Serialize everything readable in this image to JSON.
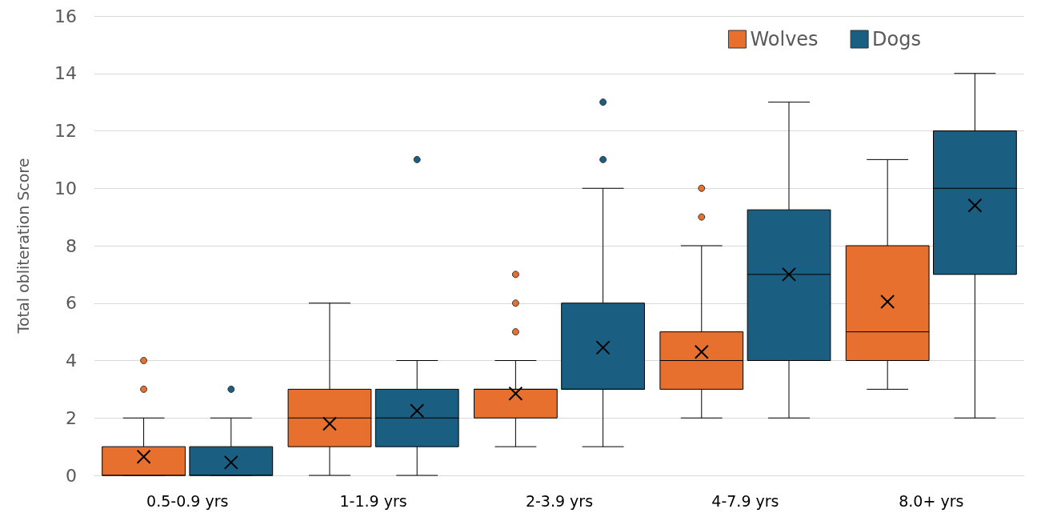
{
  "chart_data": {
    "type": "box",
    "ylabel": "Total obliteration Score",
    "categories": [
      "0.5-0.9 yrs",
      "1-1.9 yrs",
      "2-3.9 yrs",
      "4-7.9 yrs",
      "8.0+ yrs"
    ],
    "ylim": [
      0,
      16
    ],
    "yticks": [
      0,
      2,
      4,
      6,
      8,
      10,
      12,
      14,
      16
    ],
    "grid": "y",
    "legend": "top right",
    "series": [
      {
        "name": "Wolves",
        "color": "#e8702f",
        "boxes": [
          {
            "low": 0,
            "q1": 0,
            "median": 0,
            "q3": 1,
            "high": 2,
            "mean": 0.65,
            "outliers": [
              3,
              4
            ]
          },
          {
            "low": 0,
            "q1": 1,
            "median": 2,
            "q3": 3,
            "high": 6,
            "mean": 1.8
          },
          {
            "low": 1,
            "q1": 2,
            "median": 3,
            "q3": 3,
            "high": 4,
            "mean": 2.85,
            "outliers": [
              5,
              6,
              7
            ]
          },
          {
            "low": 2,
            "q1": 3,
            "median": 4,
            "q3": 5,
            "high": 8,
            "mean": 4.3,
            "outliers": [
              9,
              10
            ]
          },
          {
            "low": 3,
            "q1": 4,
            "median": 5,
            "q3": 8,
            "high": 11,
            "mean": 6.05
          }
        ]
      },
      {
        "name": "Dogs",
        "color": "#1a5e82",
        "boxes": [
          {
            "low": 0,
            "q1": 0,
            "median": 0,
            "q3": 1,
            "high": 2,
            "mean": 0.45,
            "outliers": [
              3
            ]
          },
          {
            "low": 0,
            "q1": 1,
            "median": 2,
            "q3": 3,
            "high": 4,
            "mean": 2.25,
            "outliers": [
              11
            ]
          },
          {
            "low": 1,
            "q1": 3,
            "median": 3,
            "q3": 6,
            "high": 10,
            "mean": 4.45,
            "outliers": [
              11,
              13
            ]
          },
          {
            "low": 2,
            "q1": 4,
            "median": 7,
            "q3": 9.25,
            "high": 13,
            "mean": 7.0
          },
          {
            "low": 2,
            "q1": 7,
            "median": 10,
            "q3": 12,
            "high": 14,
            "mean": 9.4
          }
        ]
      }
    ]
  }
}
